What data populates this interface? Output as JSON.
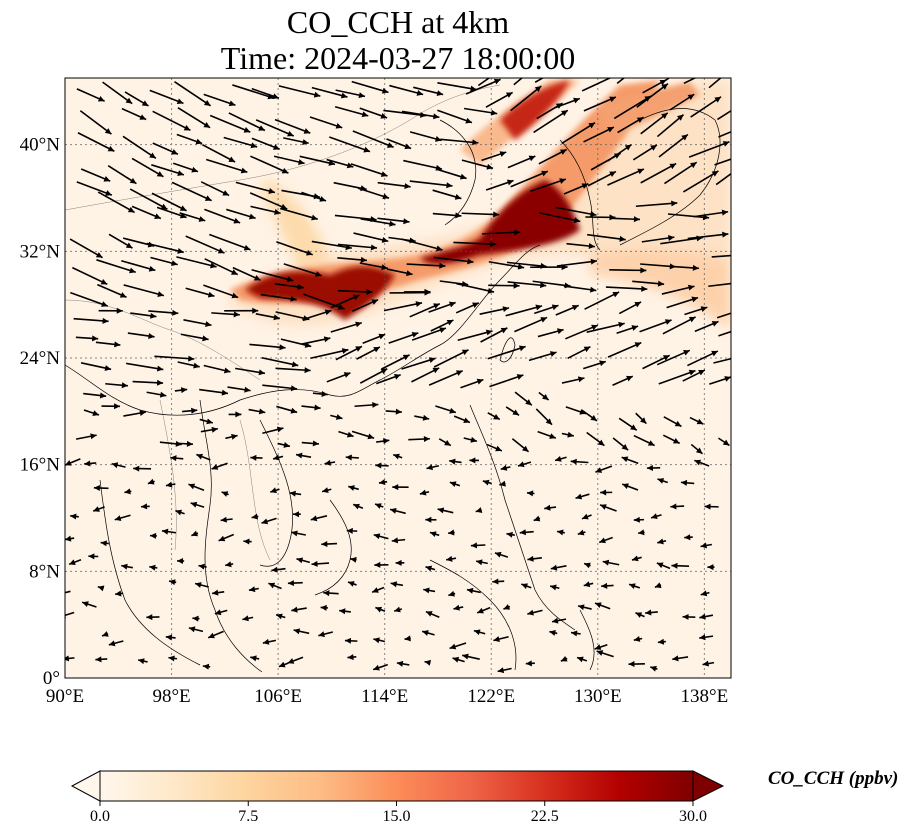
{
  "title": {
    "line1": "CO_CCH at 4km",
    "line2": "Time: 2024-03-27 18:00:00"
  },
  "map": {
    "lon_range": [
      90,
      140
    ],
    "lat_range": [
      0,
      45
    ],
    "x_tick_labels": [
      "90°E",
      "98°E",
      "106°E",
      "114°E",
      "122°E",
      "130°E",
      "138°E"
    ],
    "y_tick_labels": [
      "0°",
      "8°N",
      "16°N",
      "24°N",
      "32°N",
      "40°N"
    ],
    "gridlines": true,
    "colormap": "OrRd",
    "background_color": "#fff3e6",
    "coastline_color": "#000000"
  },
  "colorbar": {
    "label": "CO_CCH (ppbv)",
    "range": [
      0.0,
      30.0
    ],
    "tick_labels": [
      "0.0",
      "7.5",
      "15.0",
      "22.5",
      "30.0"
    ],
    "extend": "both",
    "colors": [
      "#fff7ec",
      "#fee8c8",
      "#fdd49e",
      "#fdbb84",
      "#fc8d59",
      "#ef6548",
      "#d7301f",
      "#b30000",
      "#7f0000"
    ]
  }
}
